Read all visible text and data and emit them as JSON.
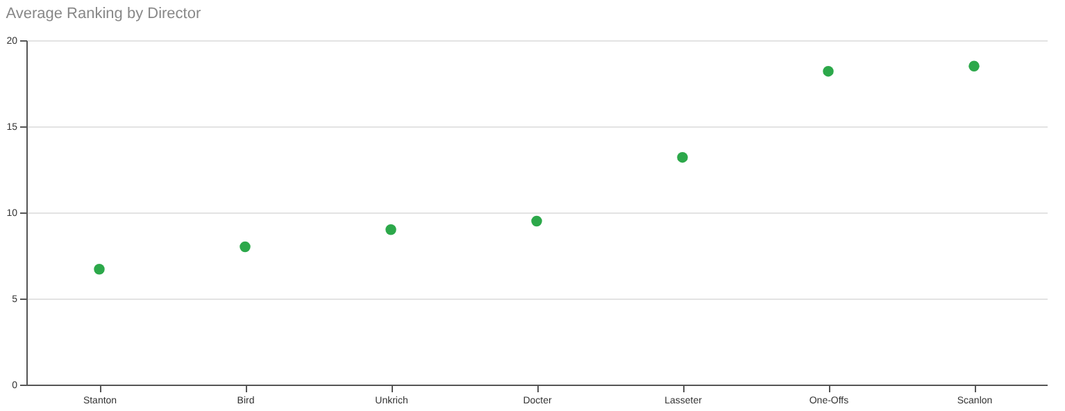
{
  "chart_data": {
    "type": "scatter",
    "title": "Average Ranking by Director",
    "categories": [
      "Stanton",
      "Bird",
      "Unkrich",
      "Docter",
      "Lasseter",
      "One-Offs",
      "Scanlon"
    ],
    "series": [
      {
        "color": "#2ca84a",
        "values": [
          6.7,
          8.0,
          9.0,
          9.5,
          13.2,
          18.2,
          18.5
        ]
      }
    ],
    "ylim": [
      0,
      20
    ],
    "yticks": [
      0,
      5,
      10,
      15,
      20
    ],
    "grid": "y",
    "marker": "circle"
  }
}
